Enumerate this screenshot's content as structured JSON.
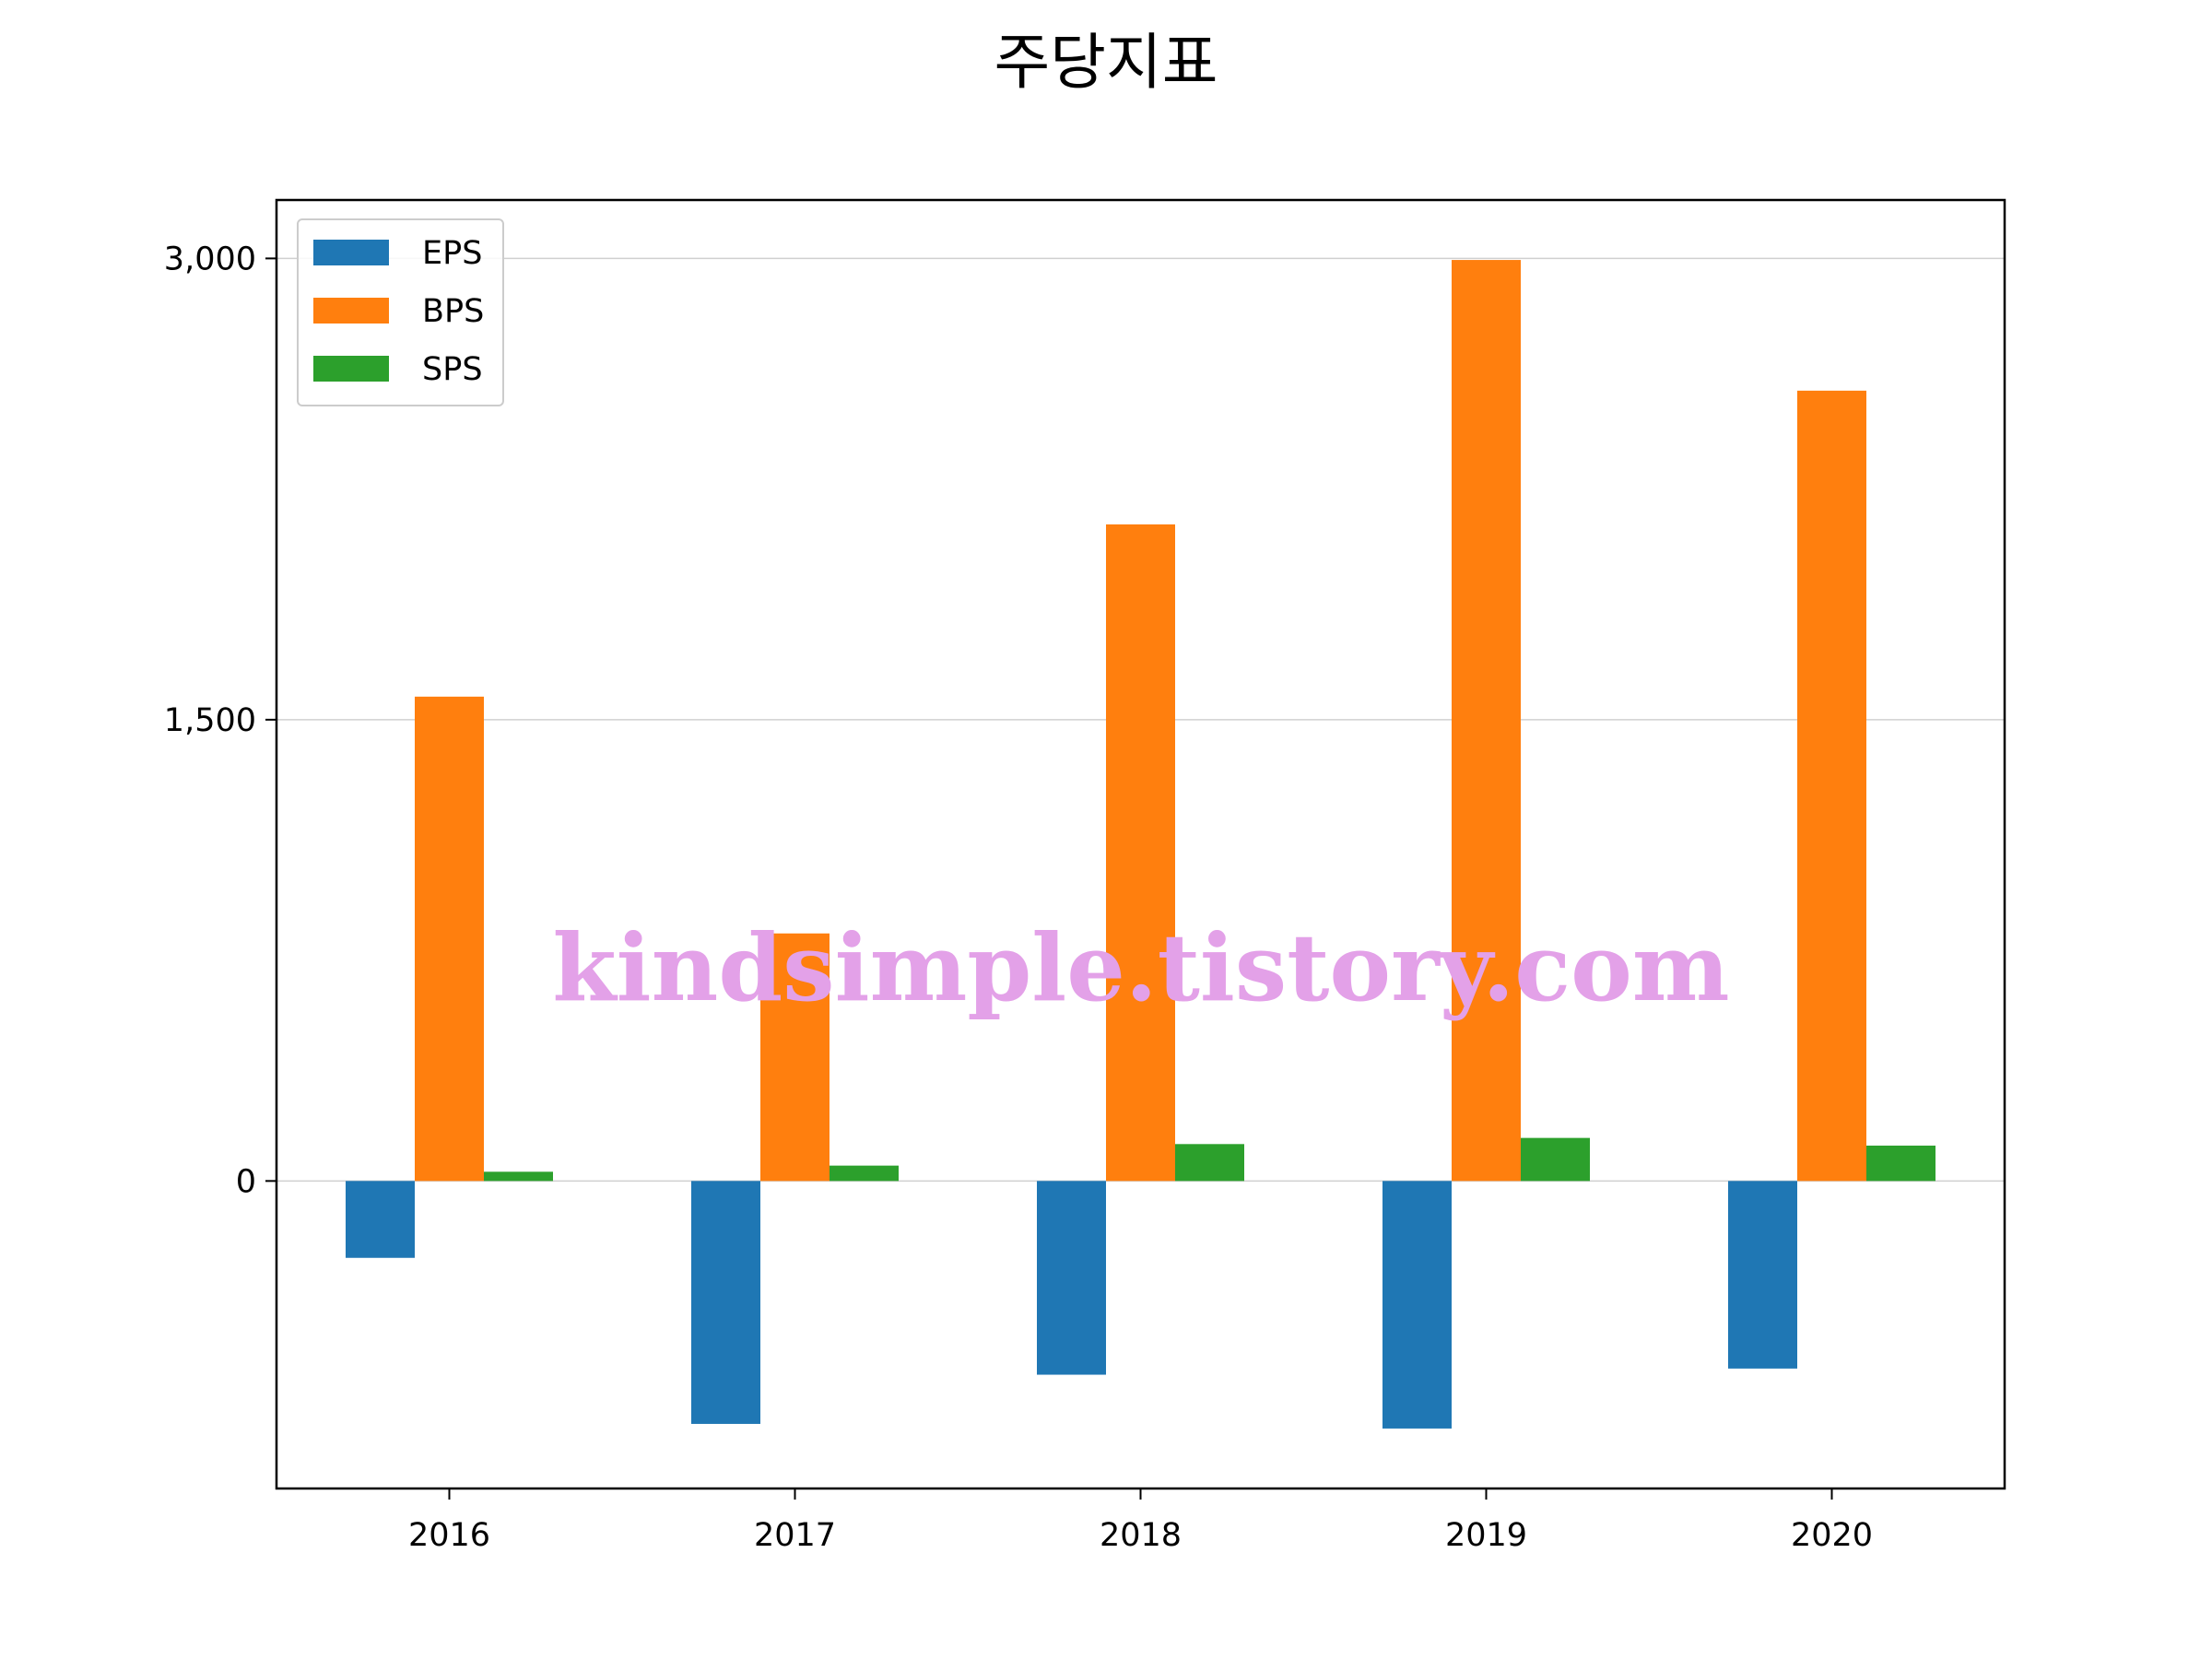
{
  "chart_data": {
    "type": "bar",
    "title": "주당지표",
    "xlabel": "",
    "ylabel": "",
    "categories": [
      "2016",
      "2017",
      "2018",
      "2019",
      "2020"
    ],
    "series": [
      {
        "name": "EPS",
        "color": "#1f77b4",
        "values": [
          -250,
          -790,
          -630,
          -805,
          -610
        ]
      },
      {
        "name": "BPS",
        "color": "#ff7f0e",
        "values": [
          1575,
          805,
          2135,
          2995,
          2570
        ]
      },
      {
        "name": "SPS",
        "color": "#2ca02c",
        "values": [
          30,
          50,
          120,
          140,
          115
        ]
      }
    ],
    "ylim": [
      -1000,
      3190
    ],
    "yticks": [
      0,
      1500,
      3000
    ],
    "ytick_labels": [
      "0",
      "1,500",
      "3,000"
    ],
    "grid": "y",
    "legend": "top-left",
    "watermark": "kindsimple.tistory.com"
  }
}
